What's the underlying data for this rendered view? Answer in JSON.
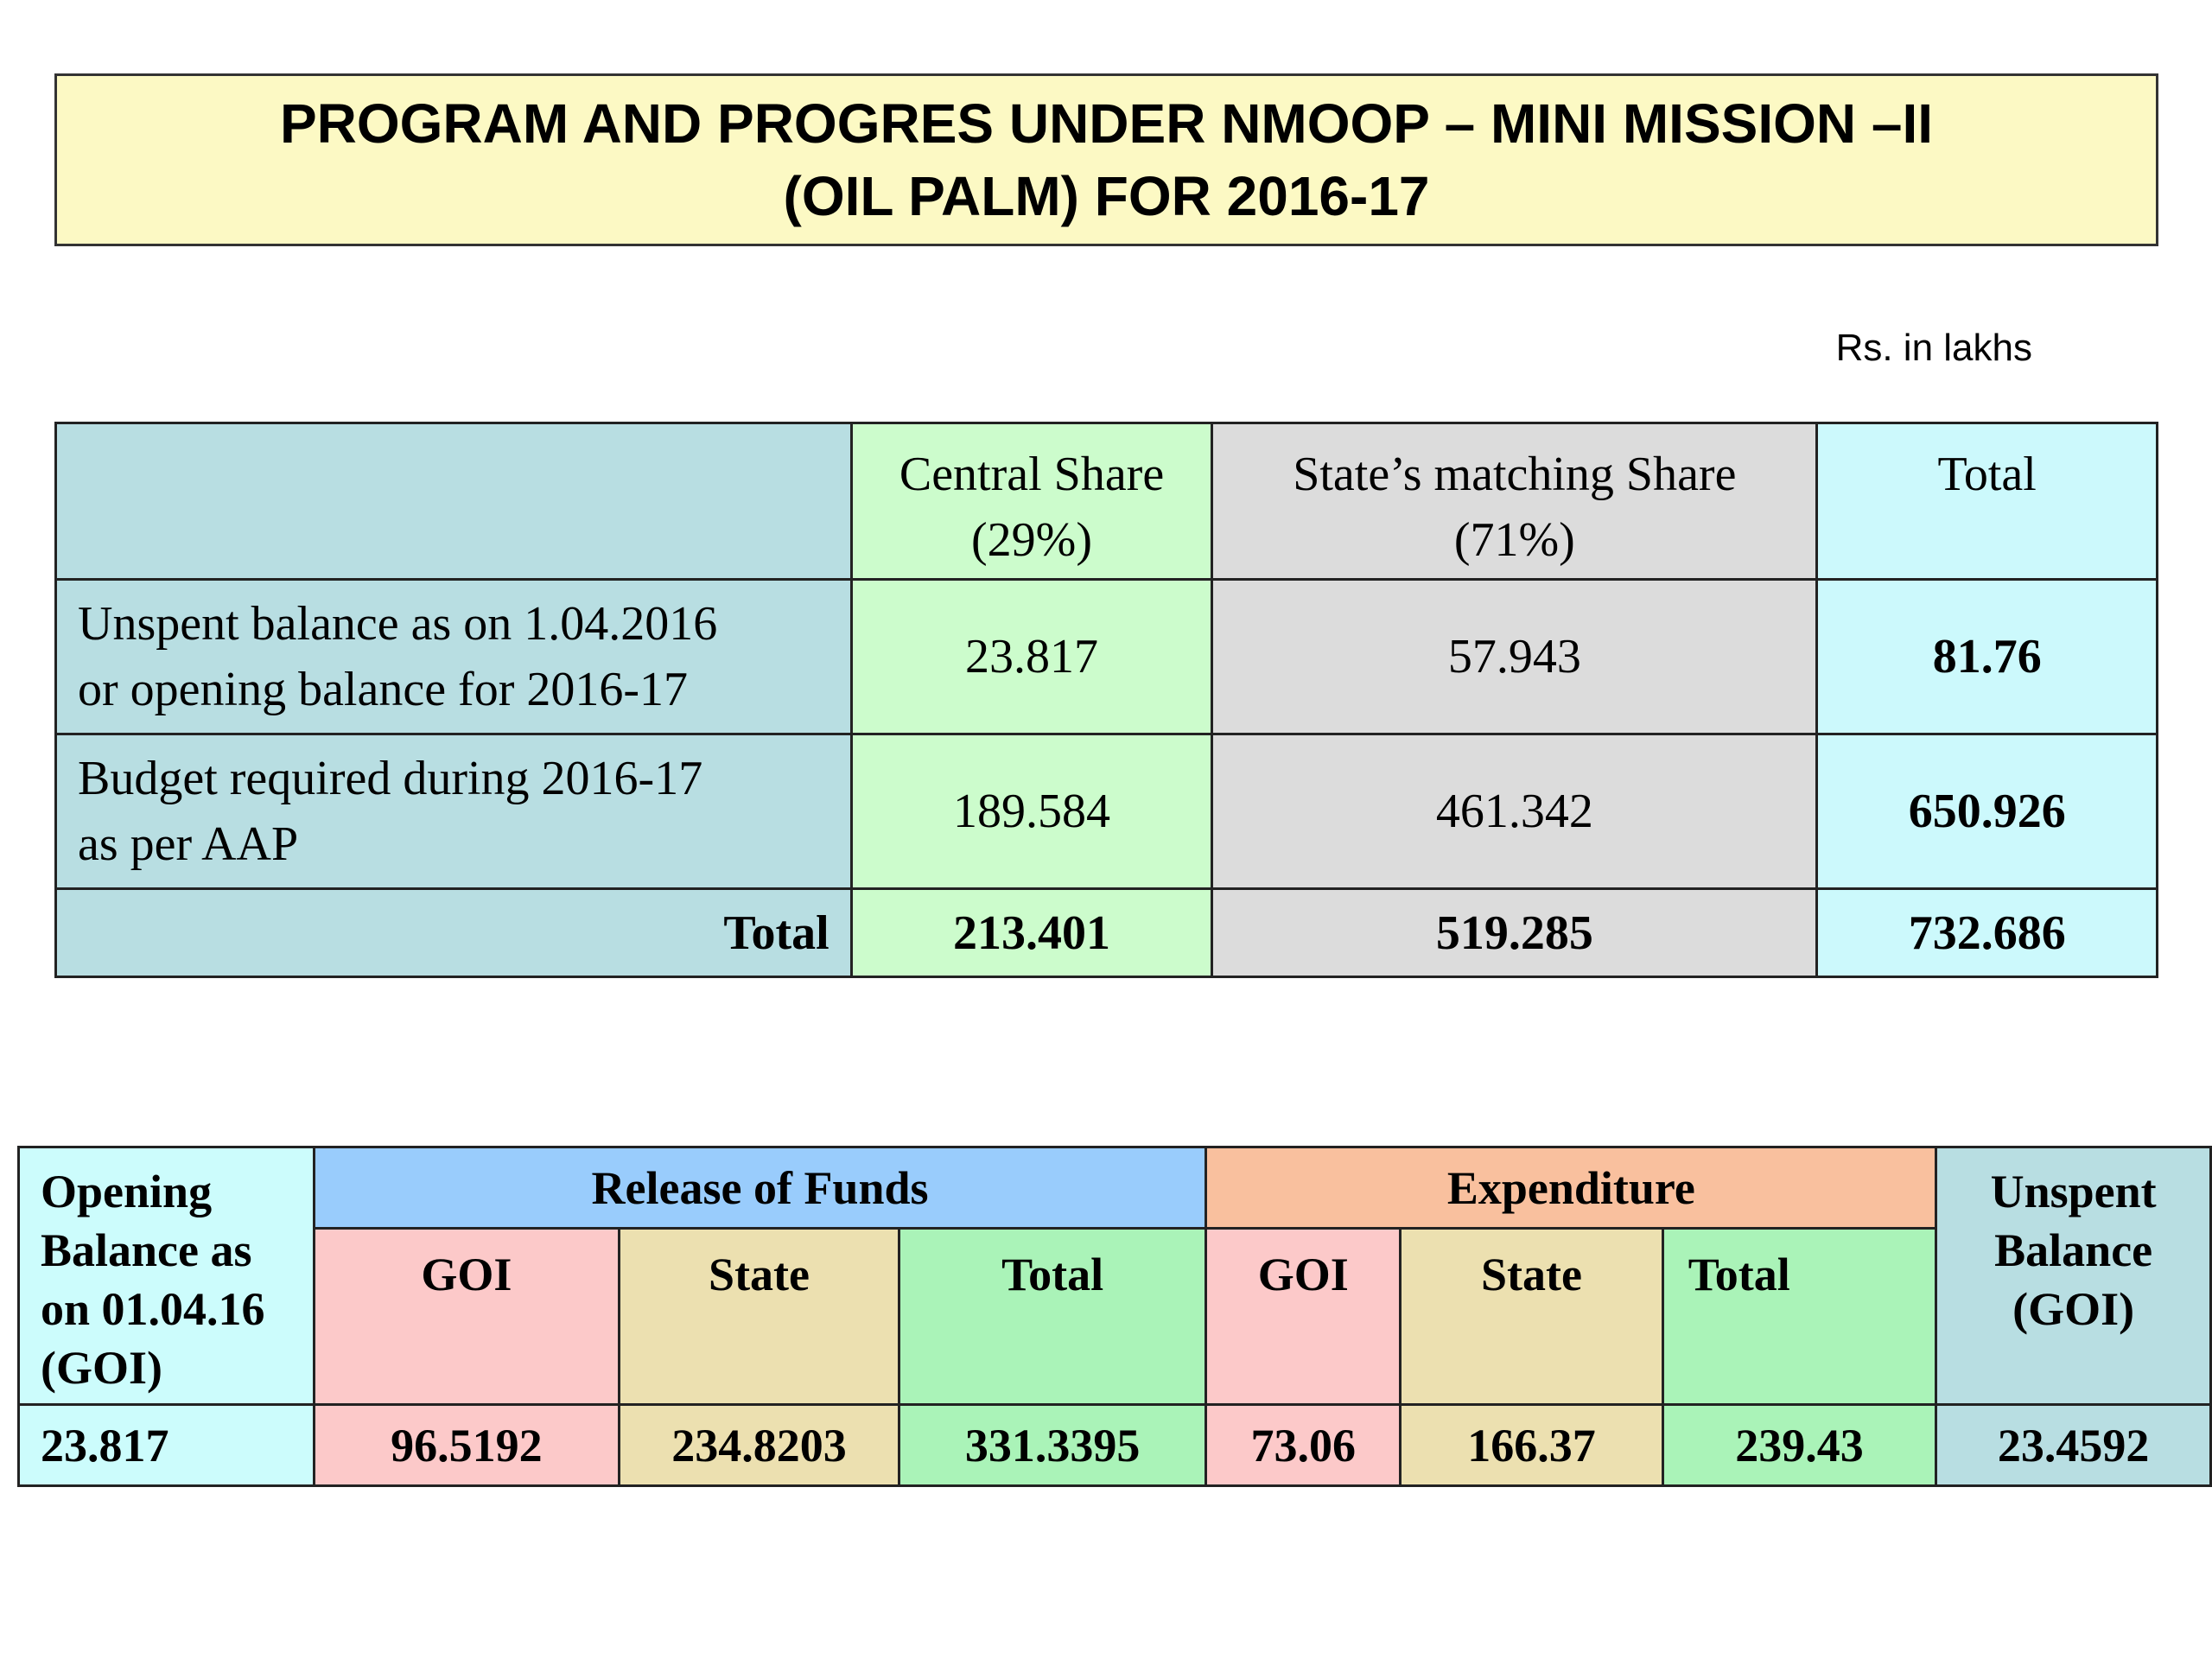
{
  "title": {
    "line1": "PROGRAM AND PROGRES UNDER NMOOP – MINI MISSION –II",
    "line2": "(OIL PALM) FOR 2016-17"
  },
  "units_note": "Rs. in lakhs",
  "table1": {
    "headers": {
      "row_label": "",
      "central_line1": "Central Share",
      "central_line2": "(29%)",
      "state_line1": "State’s matching Share",
      "state_line2": "(71%)",
      "total": "Total"
    },
    "rows": [
      {
        "label_line1": "Unspent balance as on 1.04.2016",
        "label_line2": "or opening balance for 2016-17",
        "central": "23.817",
        "state": "57.943",
        "total": "81.76"
      },
      {
        "label_line1": "Budget required during 2016-17",
        "label_line2": "as per AAP",
        "central": "189.584",
        "state": "461.342",
        "total": "650.926"
      }
    ],
    "total_row": {
      "label": "Total",
      "central": "213.401",
      "state": "519.285",
      "total": "732.686"
    }
  },
  "table2": {
    "opening_header": [
      "Opening",
      "Balance as",
      "on 01.04.16",
      "(GOI)"
    ],
    "release_header": "Release of Funds",
    "expenditure_header": "Expenditure",
    "unspent_header": [
      "Unspent",
      "Balance",
      "(GOI)"
    ],
    "release_sub": {
      "goi": "GOI",
      "state": "State",
      "total": "Total"
    },
    "expenditure_sub": {
      "goi": "GOI",
      "state": "State",
      "total": "Total"
    },
    "values": {
      "opening": "23.817",
      "release_goi": "96.5192",
      "release_state": "234.8203",
      "release_total": "331.3395",
      "exp_goi": "73.06",
      "exp_state": "166.37",
      "exp_total": "239.43",
      "unspent": "23.4592"
    }
  }
}
